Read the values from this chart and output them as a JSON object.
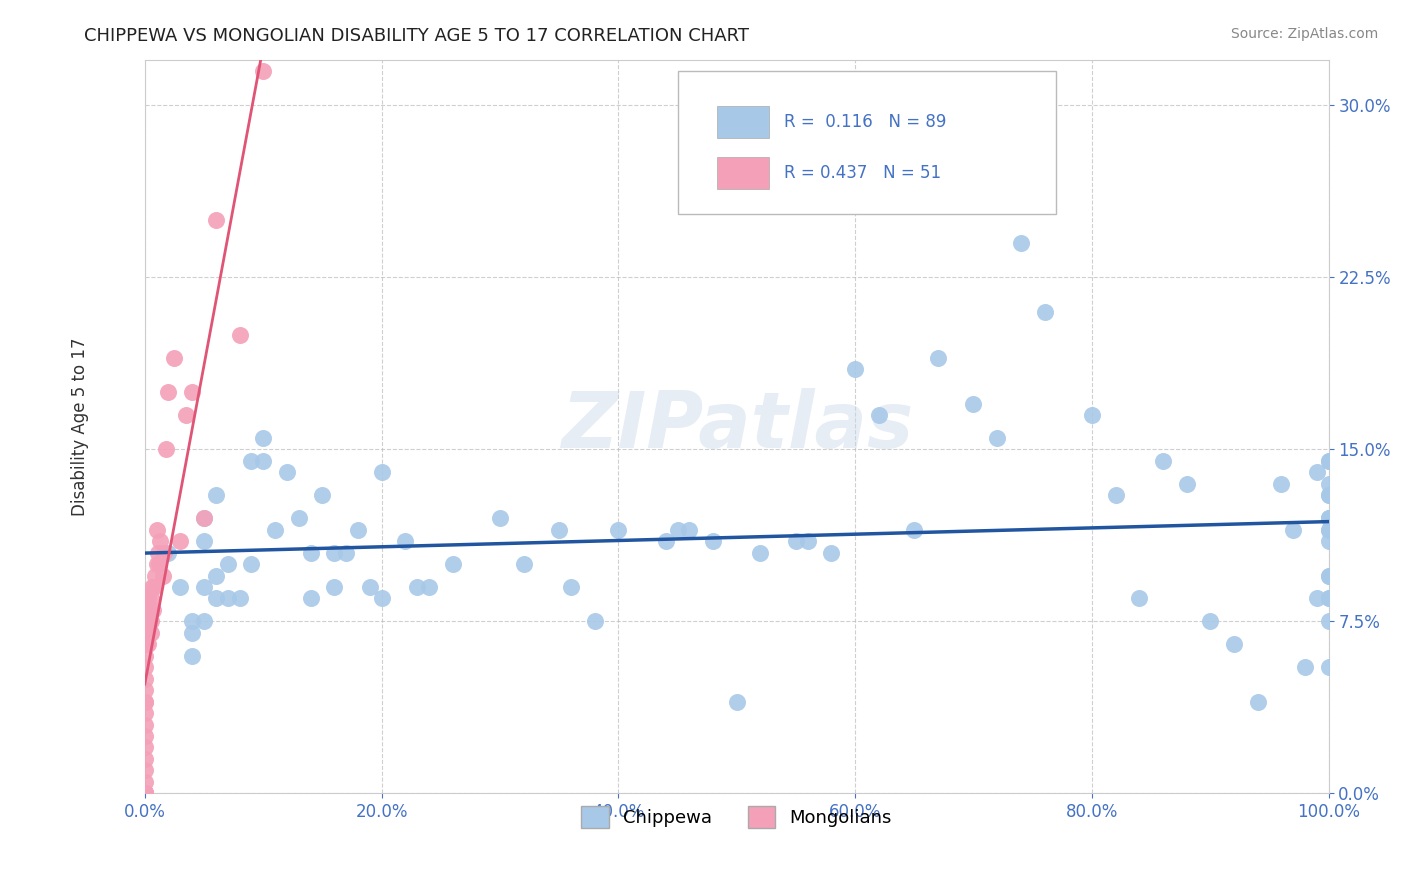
{
  "title": "CHIPPEWA VS MONGOLIAN DISABILITY AGE 5 TO 17 CORRELATION CHART",
  "source": "Source: ZipAtlas.com",
  "ylabel_label": "Disability Age 5 to 17",
  "xlim": [
    0.0,
    1.0
  ],
  "ylim": [
    0.0,
    0.32
  ],
  "xticks": [
    0.0,
    0.2,
    0.4,
    0.6,
    0.8,
    1.0
  ],
  "xticklabels": [
    "0.0%",
    "20.0%",
    "40.0%",
    "60.0%",
    "80.0%",
    "100.0%"
  ],
  "yticks": [
    0.0,
    0.075,
    0.15,
    0.225,
    0.3
  ],
  "yticklabels": [
    "0.0%",
    "7.5%",
    "15.0%",
    "22.5%",
    "30.0%"
  ],
  "chippewa_R": 0.116,
  "chippewa_N": 89,
  "mongolian_R": 0.437,
  "mongolian_N": 51,
  "chippewa_color": "#a8c8e8",
  "chippewa_line_color": "#2255a0",
  "mongolian_color": "#f4a0b8",
  "mongolian_line_color": "#e05575",
  "watermark": "ZIPatlas",
  "grid_color": "#bbbbbb",
  "chippewa_x": [
    0.02,
    0.03,
    0.04,
    0.04,
    0.04,
    0.05,
    0.05,
    0.05,
    0.05,
    0.06,
    0.06,
    0.06,
    0.07,
    0.07,
    0.08,
    0.09,
    0.09,
    0.1,
    0.1,
    0.11,
    0.12,
    0.13,
    0.14,
    0.14,
    0.15,
    0.16,
    0.16,
    0.17,
    0.18,
    0.19,
    0.2,
    0.2,
    0.22,
    0.23,
    0.24,
    0.26,
    0.3,
    0.32,
    0.35,
    0.36,
    0.38,
    0.4,
    0.44,
    0.45,
    0.46,
    0.48,
    0.5,
    0.52,
    0.55,
    0.56,
    0.58,
    0.6,
    0.62,
    0.65,
    0.67,
    0.7,
    0.72,
    0.74,
    0.76,
    0.8,
    0.82,
    0.84,
    0.86,
    0.88,
    0.9,
    0.92,
    0.94,
    0.96,
    0.97,
    0.98,
    0.99,
    0.99,
    1.0,
    1.0,
    1.0,
    1.0,
    1.0,
    1.0,
    1.0,
    1.0,
    1.0,
    1.0,
    1.0,
    1.0,
    1.0,
    1.0,
    1.0,
    1.0,
    1.0
  ],
  "chippewa_y": [
    0.105,
    0.09,
    0.075,
    0.07,
    0.06,
    0.12,
    0.11,
    0.09,
    0.075,
    0.13,
    0.095,
    0.085,
    0.1,
    0.085,
    0.085,
    0.145,
    0.1,
    0.155,
    0.145,
    0.115,
    0.14,
    0.12,
    0.105,
    0.085,
    0.13,
    0.105,
    0.09,
    0.105,
    0.115,
    0.09,
    0.14,
    0.085,
    0.11,
    0.09,
    0.09,
    0.1,
    0.12,
    0.1,
    0.115,
    0.09,
    0.075,
    0.115,
    0.11,
    0.115,
    0.115,
    0.11,
    0.04,
    0.105,
    0.11,
    0.11,
    0.105,
    0.185,
    0.165,
    0.115,
    0.19,
    0.17,
    0.155,
    0.24,
    0.21,
    0.165,
    0.13,
    0.085,
    0.145,
    0.135,
    0.075,
    0.065,
    0.04,
    0.135,
    0.115,
    0.055,
    0.14,
    0.085,
    0.12,
    0.115,
    0.145,
    0.085,
    0.075,
    0.13,
    0.055,
    0.135,
    0.095,
    0.12,
    0.115,
    0.145,
    0.085,
    0.12,
    0.095,
    0.13,
    0.11
  ],
  "mongolian_x": [
    0.0,
    0.0,
    0.0,
    0.0,
    0.0,
    0.0,
    0.0,
    0.0,
    0.0,
    0.0,
    0.0,
    0.0,
    0.0,
    0.0,
    0.0,
    0.0,
    0.0,
    0.0,
    0.0,
    0.0,
    0.001,
    0.001,
    0.002,
    0.002,
    0.003,
    0.003,
    0.004,
    0.005,
    0.005,
    0.005,
    0.006,
    0.007,
    0.008,
    0.009,
    0.01,
    0.01,
    0.011,
    0.012,
    0.013,
    0.015,
    0.016,
    0.018,
    0.02,
    0.025,
    0.03,
    0.035,
    0.04,
    0.05,
    0.06,
    0.08,
    0.1
  ],
  "mongolian_y": [
    0.0,
    0.0,
    0.0,
    0.0,
    0.0,
    0.0,
    0.0,
    0.005,
    0.01,
    0.015,
    0.02,
    0.025,
    0.03,
    0.035,
    0.04,
    0.04,
    0.045,
    0.05,
    0.055,
    0.06,
    0.065,
    0.07,
    0.075,
    0.08,
    0.065,
    0.085,
    0.08,
    0.07,
    0.075,
    0.085,
    0.09,
    0.08,
    0.09,
    0.095,
    0.1,
    0.115,
    0.105,
    0.1,
    0.11,
    0.095,
    0.105,
    0.15,
    0.175,
    0.19,
    0.11,
    0.165,
    0.175,
    0.12,
    0.25,
    0.2,
    0.315
  ],
  "background_color": "#ffffff"
}
